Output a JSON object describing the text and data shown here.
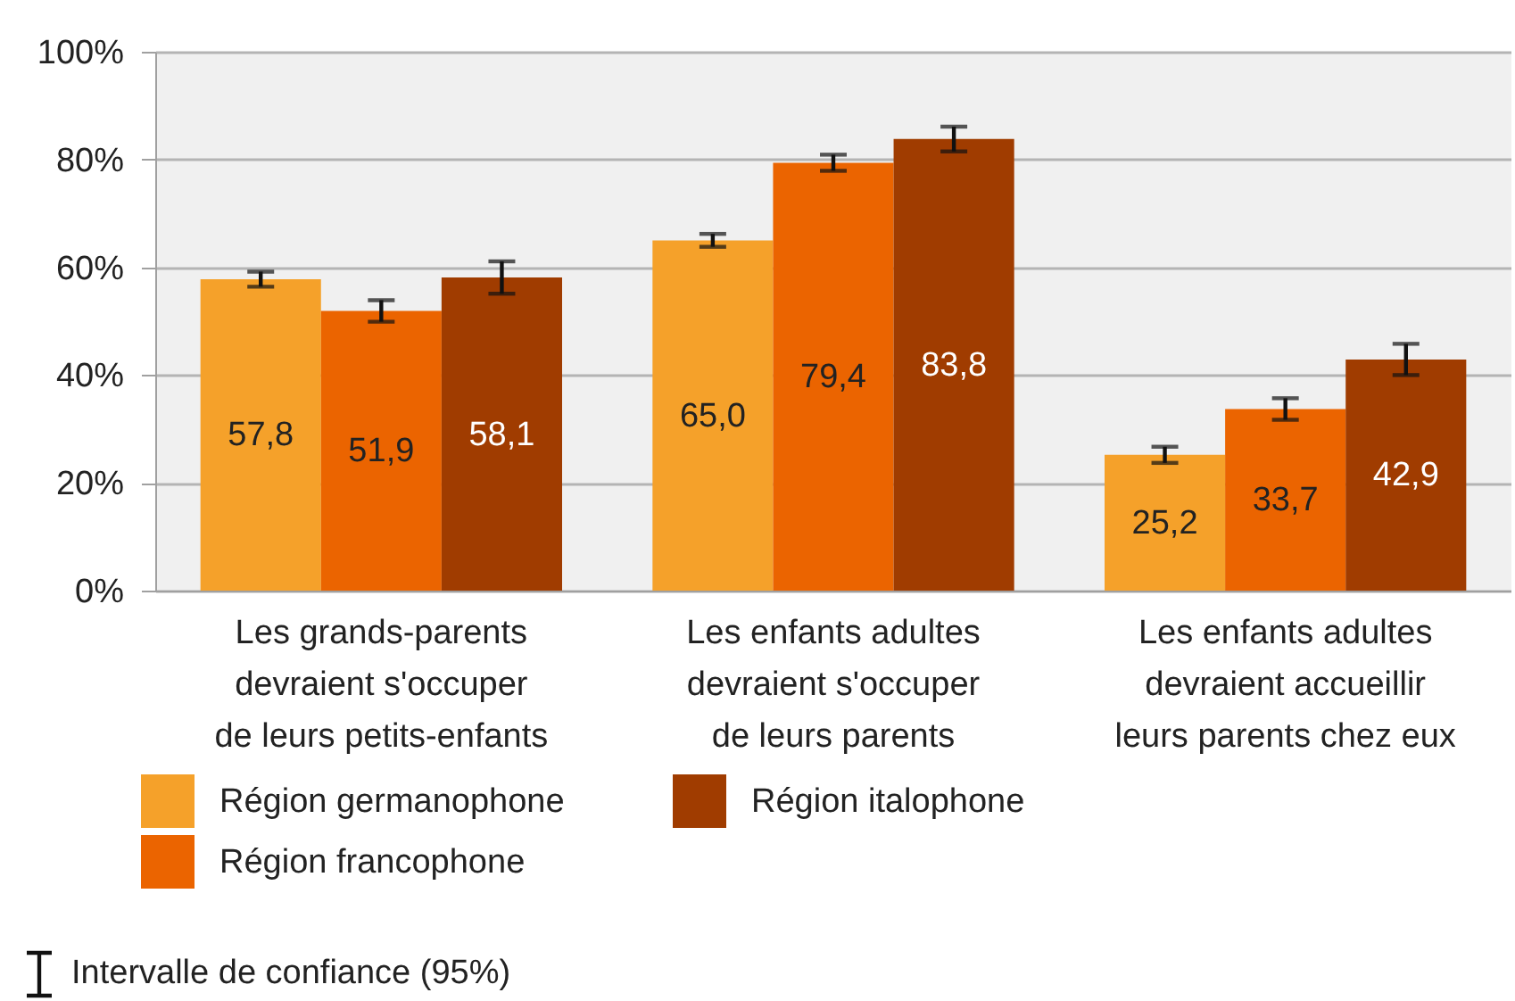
{
  "chart_data": {
    "type": "bar",
    "categories": [
      "Les grands-parents\ndevraient s'occuper\nde leurs petits-enfants",
      "Les enfants adultes\ndevraient s'occuper\nde leurs parents",
      "Les enfants adultes\ndevraient accueillir\nleurs parents chez eux"
    ],
    "series": [
      {
        "name": "Région germanophone",
        "color": "#f5a12a",
        "values": [
          57.8,
          65.0,
          25.2
        ],
        "errors": [
          1.4,
          1.2,
          1.5
        ],
        "value_labels": [
          "57,8",
          "65,0",
          "25,2"
        ]
      },
      {
        "name": "Région francophone",
        "color": "#eb6400",
        "values": [
          51.9,
          79.4,
          33.7
        ],
        "errors": [
          2.0,
          1.5,
          2.0
        ],
        "value_labels": [
          "51,9",
          "79,4",
          "33,7"
        ]
      },
      {
        "name": "Région italophone",
        "color": "#a03c00",
        "values": [
          58.1,
          83.8,
          42.9
        ],
        "errors": [
          3.0,
          2.3,
          2.9
        ],
        "value_labels": [
          "58,1",
          "83,8",
          "42,9"
        ]
      }
    ],
    "ylim": [
      0,
      100
    ],
    "yticks": [
      {
        "value": 0,
        "label": "0%"
      },
      {
        "value": 20,
        "label": "20%"
      },
      {
        "value": 40,
        "label": "40%"
      },
      {
        "value": 60,
        "label": "60%"
      },
      {
        "value": 80,
        "label": "80%"
      },
      {
        "value": 100,
        "label": "100%"
      }
    ],
    "grid": "y",
    "legend": "bottom",
    "annotations": [
      "Intervalle de confiance (95%)"
    ]
  }
}
